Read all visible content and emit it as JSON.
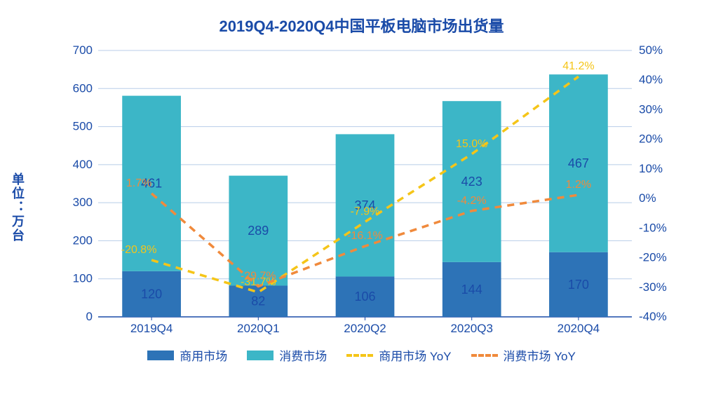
{
  "chart": {
    "type": "bar+line",
    "title": "2019Q4-2020Q4中国平板电脑市场出货量",
    "title_color": "#1a4ba8",
    "title_fontsize": 22,
    "y_axis_left_label": "单位：万台",
    "categories": [
      "2019Q4",
      "2020Q1",
      "2020Q2",
      "2020Q3",
      "2020Q4"
    ],
    "series_bar_a": {
      "name": "商用市场",
      "color": "#2d73b7",
      "values": [
        120,
        82,
        106,
        144,
        170
      ]
    },
    "series_bar_b": {
      "name": "消费市场",
      "color": "#3cb6c7",
      "values": [
        461,
        289,
        374,
        423,
        467
      ]
    },
    "series_line_a": {
      "name": "商用市场 YoY",
      "color": "#f5c518",
      "dashed": true,
      "values_pct": [
        -20.8,
        -31.7,
        -7.9,
        15.0,
        41.2
      ],
      "labels": [
        "-20.8%",
        "-31.7%",
        "-7.9%",
        "15.0%",
        "41.2%"
      ]
    },
    "series_line_b": {
      "name": "消费市场 YoY",
      "color": "#f08a3c",
      "dashed": true,
      "values_pct": [
        1.7,
        -29.7,
        -16.1,
        -4.2,
        1.2
      ],
      "labels": [
        "1.7%",
        "-29.7%",
        "-16.1%",
        "-4.2%",
        "1.2%"
      ]
    },
    "y_left": {
      "min": 0,
      "max": 700,
      "step": 100,
      "ticks": [
        "0",
        "100",
        "200",
        "300",
        "400",
        "500",
        "600",
        "700"
      ]
    },
    "y_right": {
      "min": -40,
      "max": 50,
      "step": 10,
      "ticks": [
        "-40%",
        "-30%",
        "-20%",
        "-10%",
        "0%",
        "10%",
        "20%",
        "30%",
        "40%",
        "50%"
      ]
    },
    "axis_color": "#1a4ba8",
    "grid_color": "#b8cde8",
    "label_fontsize": 17,
    "value_label_color": "#1a4ba8",
    "bar_width_ratio": 0.55,
    "background": "#ffffff",
    "line_width": 3.5
  },
  "legend": {
    "items": [
      {
        "label": "商用市场"
      },
      {
        "label": "消费市场"
      },
      {
        "label": "商用市场 YoY"
      },
      {
        "label": "消费市场 YoY"
      }
    ]
  }
}
